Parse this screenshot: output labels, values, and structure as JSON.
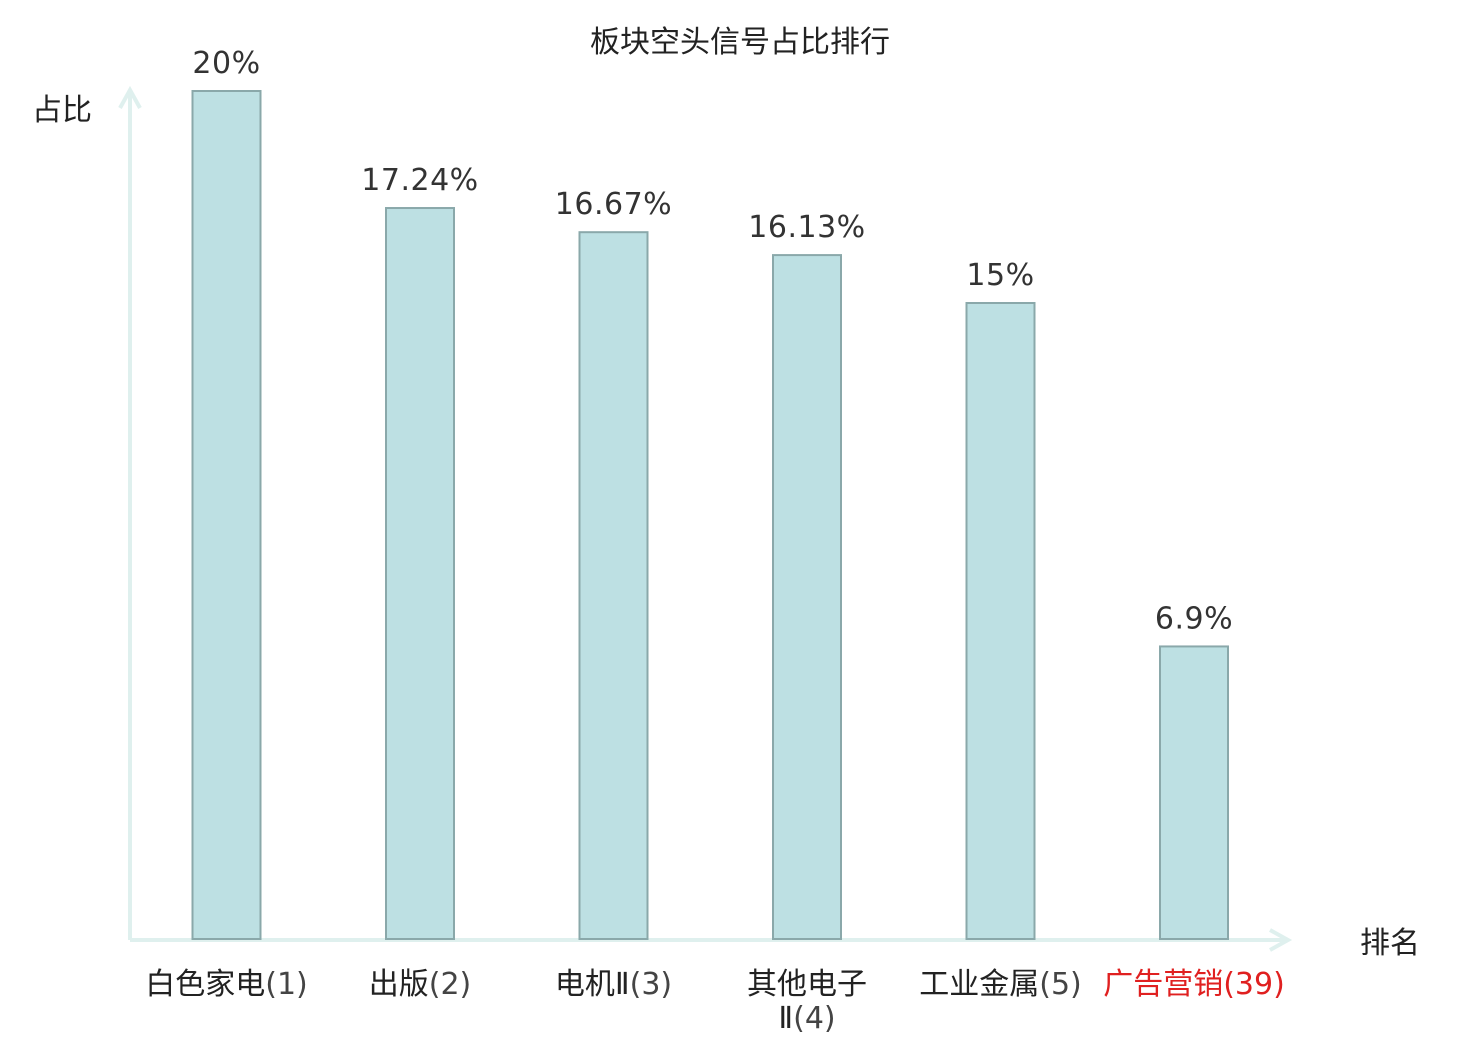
{
  "chart_data": {
    "type": "bar",
    "title": "板块空头信号占比排行",
    "xlabel": "排名",
    "ylabel": "占比",
    "categories": [
      {
        "name": "白色家电",
        "rank": "(1)",
        "highlight": false
      },
      {
        "name": "出版",
        "rank": "(2)",
        "highlight": false
      },
      {
        "name": "电机Ⅱ",
        "rank": "(3)",
        "highlight": false
      },
      {
        "name": "其他电子Ⅱ",
        "rank": "(4)",
        "highlight": false
      },
      {
        "name": "工业金属",
        "rank": "(5)",
        "highlight": false
      },
      {
        "name": "广告营销",
        "rank": "(39)",
        "highlight": true
      }
    ],
    "values": [
      20,
      17.24,
      16.67,
      16.13,
      15,
      6.9
    ],
    "value_labels": [
      "20%",
      "17.24%",
      "16.67%",
      "16.13%",
      "15%",
      "6.9%"
    ],
    "ylim": [
      0,
      20
    ],
    "grid": false,
    "legend": "none",
    "colors": {
      "bar_fill": "#bde0e3",
      "bar_stroke": "#8aa8aa",
      "axis": "#dff0ee",
      "highlight_text": "#e02020",
      "text": "#222222",
      "rank_text": "#444444"
    }
  }
}
